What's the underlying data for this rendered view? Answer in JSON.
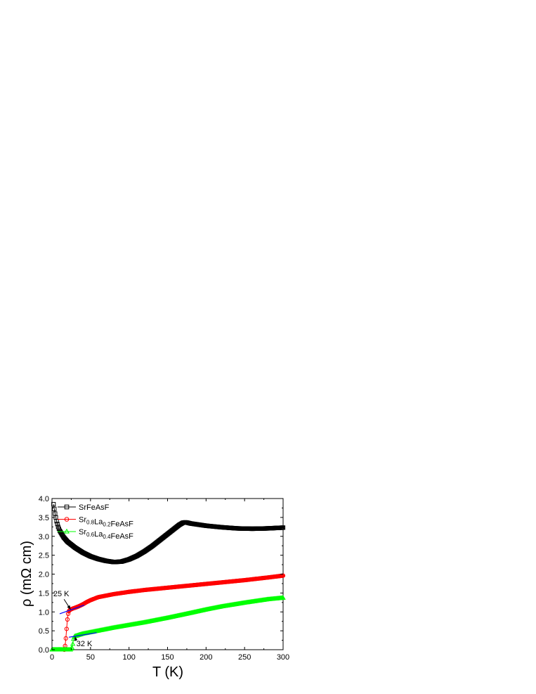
{
  "chart_data": {
    "type": "scatter",
    "xlabel": "T (K)",
    "ylabel": "ρ (mΩ cm)",
    "xlim": [
      0,
      300
    ],
    "ylim": [
      0.0,
      4.0
    ],
    "xticks": [
      0,
      50,
      100,
      150,
      200,
      250,
      300
    ],
    "yticks": [
      0.0,
      0.5,
      1.0,
      1.5,
      2.0,
      2.5,
      3.0,
      3.5,
      4.0
    ],
    "xtick_labels": [
      "0",
      "50",
      "100",
      "150",
      "200",
      "250",
      "300"
    ],
    "ytick_labels": [
      "0.0",
      "0.5",
      "1.0",
      "1.5",
      "2.0",
      "2.5",
      "3.0",
      "3.5",
      "4.0"
    ],
    "grid": false,
    "legend_position": "top-left",
    "series": [
      {
        "name": "SrFeAsF",
        "label_parts": [
          [
            "SrFeAsF",
            ""
          ]
        ],
        "marker": "square",
        "color": "#000000",
        "x": [
          2,
          4,
          6,
          8,
          10,
          15,
          20,
          30,
          40,
          50,
          60,
          70,
          80,
          90,
          100,
          110,
          120,
          130,
          140,
          150,
          160,
          165,
          170,
          173,
          176,
          180,
          190,
          200,
          220,
          240,
          260,
          280,
          300
        ],
        "y": [
          3.85,
          3.6,
          3.4,
          3.25,
          3.15,
          2.98,
          2.86,
          2.7,
          2.57,
          2.47,
          2.4,
          2.35,
          2.32,
          2.33,
          2.39,
          2.48,
          2.6,
          2.74,
          2.9,
          3.06,
          3.22,
          3.3,
          3.36,
          3.37,
          3.36,
          3.34,
          3.31,
          3.28,
          3.24,
          3.21,
          3.2,
          3.21,
          3.23
        ]
      },
      {
        "name": "Sr0.8La0.2FeAsF",
        "label_parts": [
          [
            "Sr",
            ""
          ],
          [
            "0.8",
            "sub"
          ],
          [
            "La",
            ""
          ],
          [
            "0.2",
            "sub"
          ],
          [
            "FeAsF",
            ""
          ]
        ],
        "marker": "circle",
        "color": "#ff0000",
        "x": [
          16,
          17,
          18,
          19,
          20,
          21,
          22,
          23,
          24,
          25,
          27,
          30,
          35,
          40,
          45,
          50,
          55,
          60,
          70,
          80,
          100,
          120,
          150,
          180,
          200,
          220,
          250,
          280,
          300
        ],
        "y": [
          0.0,
          0.1,
          0.3,
          0.55,
          0.8,
          0.95,
          1.02,
          1.05,
          1.06,
          1.07,
          1.09,
          1.11,
          1.15,
          1.2,
          1.26,
          1.31,
          1.35,
          1.39,
          1.43,
          1.47,
          1.53,
          1.58,
          1.64,
          1.7,
          1.74,
          1.78,
          1.84,
          1.91,
          1.96
        ]
      },
      {
        "name": "Sr0.6La0.4FeAsF",
        "label_parts": [
          [
            "Sr",
            ""
          ],
          [
            "0.6",
            "sub"
          ],
          [
            "La",
            ""
          ],
          [
            "0.4",
            "sub"
          ],
          [
            "FeAsF",
            ""
          ]
        ],
        "marker": "triangle",
        "color": "#00ff00",
        "x": [
          0,
          5,
          10,
          15,
          20,
          24,
          26,
          27,
          28,
          29,
          30,
          32,
          35,
          40,
          50,
          60,
          80,
          100,
          120,
          150,
          180,
          200,
          220,
          250,
          280,
          300
        ],
        "y": [
          0.0,
          0.0,
          0.0,
          0.0,
          0.0,
          0.0,
          0.05,
          0.15,
          0.28,
          0.34,
          0.36,
          0.37,
          0.39,
          0.42,
          0.46,
          0.5,
          0.58,
          0.65,
          0.72,
          0.84,
          0.97,
          1.06,
          1.14,
          1.24,
          1.33,
          1.37
        ]
      }
    ],
    "fit_lines": [
      {
        "x": [
          10,
          42
        ],
        "y": [
          0.95,
          1.18
        ],
        "color": "#0000ff"
      },
      {
        "x": [
          22,
          58
        ],
        "y": [
          0.33,
          0.45
        ],
        "color": "#0000ff"
      }
    ],
    "annotations": [
      {
        "text": "25 K",
        "x": 12,
        "y": 1.41,
        "arrow_to": [
          24,
          1.07
        ]
      },
      {
        "text": "32 K",
        "x": 42,
        "y": 0.09,
        "arrow_to": [
          30,
          0.34
        ]
      }
    ]
  }
}
